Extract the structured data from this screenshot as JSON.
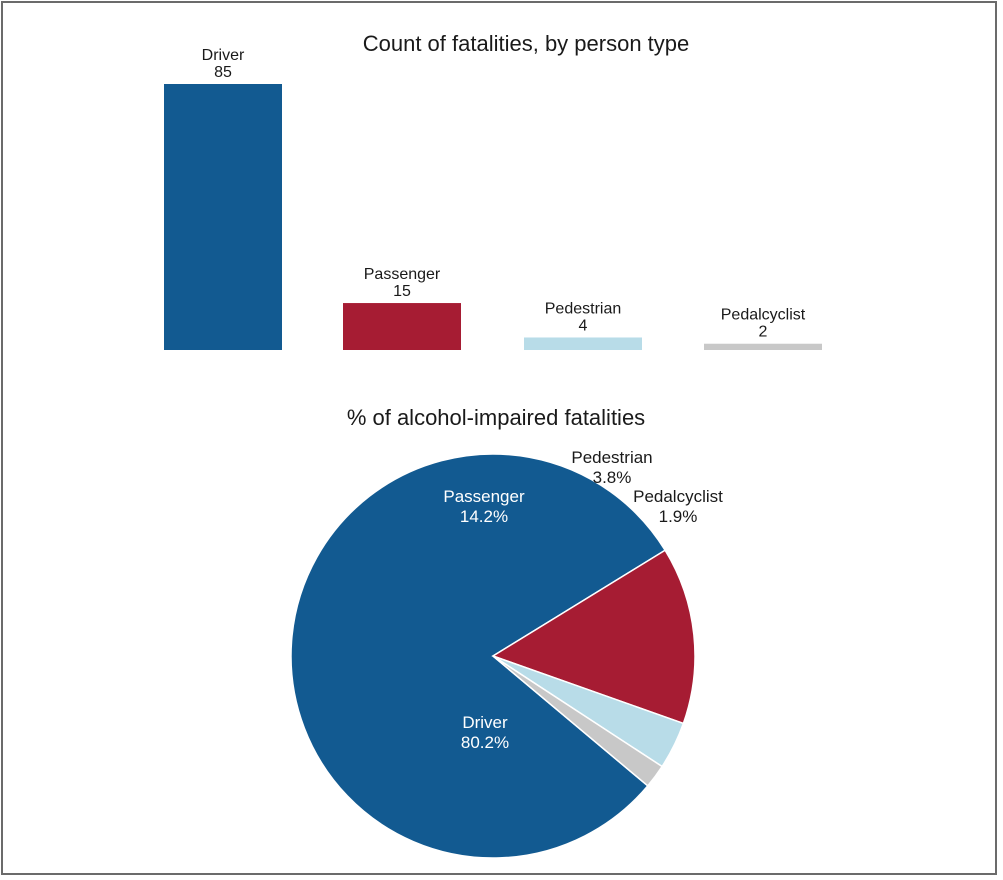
{
  "chart_data": [
    {
      "type": "bar",
      "title": "Count of fatalities, by person type",
      "categories": [
        "Driver",
        "Passenger",
        "Pedestrian",
        "Pedalcyclist"
      ],
      "values": [
        85,
        15,
        4,
        2
      ],
      "value_labels": [
        "85",
        "15",
        "4",
        "2"
      ],
      "colors": [
        "#125a91",
        "#a61c33",
        "#b8dce8",
        "#c8c8c8"
      ],
      "ylim": [
        0,
        85
      ],
      "grid": false,
      "legend": "none"
    },
    {
      "type": "pie",
      "title": "% of alcohol-impaired fatalities",
      "categories": [
        "Driver",
        "Passenger",
        "Pedestrian",
        "Pedalcyclist"
      ],
      "values": [
        80.2,
        14.2,
        3.8,
        1.9
      ],
      "value_labels": [
        "80.2%",
        "14.2%",
        "3.8%",
        "1.9%"
      ],
      "colors": [
        "#125a91",
        "#a61c33",
        "#b8dce8",
        "#c8c8c8"
      ],
      "legend": "none"
    }
  ]
}
